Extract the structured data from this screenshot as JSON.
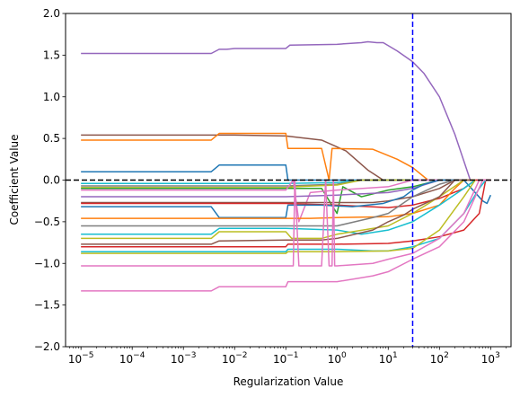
{
  "chart_data": {
    "type": "line",
    "xscale": "log",
    "xlabel": "Regularization Value",
    "ylabel": "Coefficient Value",
    "xlim": [
      5e-06,
      2500
    ],
    "ylim": [
      -2.0,
      2.0
    ],
    "grid": false,
    "yticks": [
      {
        "value": -2.0,
        "label": "−2.0"
      },
      {
        "value": -1.5,
        "label": "−1.5"
      },
      {
        "value": -1.0,
        "label": "−1.0"
      },
      {
        "value": -0.5,
        "label": "−0.5"
      },
      {
        "value": 0.0,
        "label": "0.0"
      },
      {
        "value": 0.5,
        "label": "0.5"
      },
      {
        "value": 1.0,
        "label": "1.0"
      },
      {
        "value": 1.5,
        "label": "1.5"
      },
      {
        "value": 2.0,
        "label": "2.0"
      }
    ],
    "xticks": [
      {
        "value": 1e-05,
        "base": "10",
        "exp": "−5"
      },
      {
        "value": 0.0001,
        "base": "10",
        "exp": "−4"
      },
      {
        "value": 0.001,
        "base": "10",
        "exp": "−3"
      },
      {
        "value": 0.01,
        "base": "10",
        "exp": "−2"
      },
      {
        "value": 0.1,
        "base": "10",
        "exp": "−1"
      },
      {
        "value": 1,
        "base": "10",
        "exp": "0"
      },
      {
        "value": 10,
        "base": "10",
        "exp": "1"
      },
      {
        "value": 100,
        "base": "10",
        "exp": "2"
      },
      {
        "value": 1000,
        "base": "10",
        "exp": "3"
      }
    ],
    "reference_lines": [
      {
        "orientation": "horizontal",
        "value": 0.0,
        "color": "#000000",
        "style": "dashed"
      },
      {
        "orientation": "vertical",
        "value": 30,
        "color": "#0000ff",
        "style": "dashed"
      }
    ],
    "series": [
      {
        "color": "#9467bd",
        "points": [
          [
            1e-05,
            1.52
          ],
          [
            0.0035,
            1.52
          ],
          [
            0.005,
            1.57
          ],
          [
            0.007,
            1.57
          ],
          [
            0.01,
            1.58
          ],
          [
            0.1,
            1.58
          ],
          [
            0.12,
            1.62
          ],
          [
            1,
            1.63
          ],
          [
            3,
            1.65
          ],
          [
            4,
            1.66
          ],
          [
            6,
            1.65
          ],
          [
            8,
            1.65
          ],
          [
            15,
            1.55
          ],
          [
            30,
            1.42
          ],
          [
            50,
            1.28
          ],
          [
            100,
            1.0
          ],
          [
            200,
            0.55
          ],
          [
            400,
            0.0
          ],
          [
            700,
            0.0
          ],
          [
            1000,
            0.0
          ]
        ]
      },
      {
        "color": "#8c564b",
        "points": [
          [
            1e-05,
            0.54
          ],
          [
            0.01,
            0.54
          ],
          [
            0.1,
            0.53
          ],
          [
            0.5,
            0.48
          ],
          [
            1.5,
            0.35
          ],
          [
            4,
            0.12
          ],
          [
            8,
            0.0
          ],
          [
            30,
            0.0
          ],
          [
            300,
            0.0
          ]
        ]
      },
      {
        "color": "#ff7f0e",
        "points": [
          [
            1e-05,
            0.48
          ],
          [
            0.0035,
            0.48
          ],
          [
            0.005,
            0.56
          ],
          [
            0.1,
            0.56
          ],
          [
            0.11,
            0.38
          ],
          [
            0.5,
            0.38
          ],
          [
            0.7,
            0.0
          ],
          [
            0.8,
            0.38
          ],
          [
            5,
            0.37
          ],
          [
            15,
            0.25
          ],
          [
            30,
            0.15
          ],
          [
            60,
            0.0
          ],
          [
            300,
            0.0
          ]
        ]
      },
      {
        "color": "#1f77b4",
        "points": [
          [
            1e-05,
            0.1
          ],
          [
            0.0035,
            0.1
          ],
          [
            0.005,
            0.18
          ],
          [
            0.1,
            0.18
          ],
          [
            0.11,
            0.0
          ],
          [
            0.3,
            0.0
          ],
          [
            1,
            0.0
          ],
          [
            10,
            0.0
          ],
          [
            30,
            0.0
          ],
          [
            100,
            0.0
          ]
        ]
      },
      {
        "color": "#17becf",
        "points": [
          [
            1e-05,
            -0.04
          ],
          [
            0.1,
            -0.04
          ],
          [
            1,
            -0.03
          ],
          [
            3,
            0.0
          ],
          [
            30,
            0.0
          ]
        ]
      },
      {
        "color": "#7f7f7f",
        "points": [
          [
            1e-05,
            -0.07
          ],
          [
            0.1,
            -0.07
          ],
          [
            1,
            -0.05
          ],
          [
            3,
            0.0
          ],
          [
            30,
            0.0
          ]
        ]
      },
      {
        "color": "#bcbd22",
        "points": [
          [
            1e-05,
            -0.09
          ],
          [
            0.1,
            -0.09
          ],
          [
            0.15,
            -0.08
          ],
          [
            1,
            -0.06
          ],
          [
            3,
            0.0
          ],
          [
            30,
            0.0
          ]
        ]
      },
      {
        "color": "#2ca02c",
        "points": [
          [
            1e-05,
            -0.1
          ],
          [
            0.1,
            -0.1
          ],
          [
            0.5,
            -0.1
          ],
          [
            1,
            -0.4
          ],
          [
            1.3,
            -0.08
          ],
          [
            3,
            -0.2
          ],
          [
            10,
            -0.12
          ],
          [
            30,
            -0.08
          ],
          [
            100,
            0.0
          ],
          [
            300,
            0.0
          ]
        ]
      },
      {
        "color": "#e377c2",
        "points": [
          [
            1e-05,
            -0.12
          ],
          [
            0.1,
            -0.12
          ],
          [
            0.14,
            0.0
          ],
          [
            0.18,
            -0.5
          ],
          [
            0.3,
            -0.15
          ],
          [
            1,
            -0.12
          ],
          [
            10,
            -0.08
          ],
          [
            30,
            0.0
          ],
          [
            100,
            0.0
          ]
        ]
      },
      {
        "color": "#9467bd",
        "points": [
          [
            1e-05,
            -0.2
          ],
          [
            0.1,
            -0.2
          ],
          [
            1,
            -0.18
          ],
          [
            10,
            -0.15
          ],
          [
            30,
            -0.1
          ],
          [
            100,
            0.0
          ],
          [
            300,
            0.0
          ]
        ]
      },
      {
        "color": "#8c564b",
        "points": [
          [
            1e-05,
            -0.27
          ],
          [
            0.1,
            -0.27
          ],
          [
            1,
            -0.27
          ],
          [
            5,
            -0.27
          ],
          [
            10,
            -0.25
          ],
          [
            30,
            -0.2
          ],
          [
            100,
            -0.1
          ],
          [
            200,
            0.0
          ],
          [
            400,
            0.0
          ]
        ]
      },
      {
        "color": "#d62728",
        "points": [
          [
            1e-05,
            -0.28
          ],
          [
            0.1,
            -0.28
          ],
          [
            1,
            -0.3
          ],
          [
            10,
            -0.33
          ],
          [
            30,
            -0.3
          ],
          [
            100,
            -0.22
          ],
          [
            300,
            -0.1
          ],
          [
            500,
            0.0
          ],
          [
            1000,
            0.0
          ]
        ]
      },
      {
        "color": "#1f77b4",
        "points": [
          [
            1e-05,
            -0.32
          ],
          [
            0.0035,
            -0.32
          ],
          [
            0.005,
            -0.45
          ],
          [
            0.1,
            -0.45
          ],
          [
            0.11,
            -0.3
          ],
          [
            0.5,
            -0.3
          ],
          [
            2,
            -0.32
          ],
          [
            8,
            -0.28
          ],
          [
            20,
            -0.2
          ],
          [
            30,
            -0.12
          ],
          [
            50,
            -0.05
          ],
          [
            100,
            0.0
          ],
          [
            300,
            0.0
          ],
          [
            700,
            -0.25
          ],
          [
            850,
            -0.28
          ],
          [
            1000,
            -0.18
          ]
        ]
      },
      {
        "color": "#ff7f0e",
        "points": [
          [
            1e-05,
            -0.46
          ],
          [
            0.1,
            -0.46
          ],
          [
            0.3,
            -0.46
          ],
          [
            1,
            -0.45
          ],
          [
            10,
            -0.44
          ],
          [
            30,
            -0.4
          ],
          [
            100,
            -0.3
          ],
          [
            200,
            -0.1
          ],
          [
            300,
            0.0
          ],
          [
            500,
            0.0
          ]
        ]
      },
      {
        "color": "#7f7f7f",
        "points": [
          [
            1e-05,
            -0.55
          ],
          [
            0.1,
            -0.55
          ],
          [
            0.5,
            -0.55
          ],
          [
            1,
            -0.55
          ],
          [
            5,
            -0.45
          ],
          [
            10,
            -0.4
          ],
          [
            30,
            -0.2
          ],
          [
            100,
            -0.05
          ],
          [
            200,
            0.0
          ],
          [
            400,
            0.0
          ]
        ]
      },
      {
        "color": "#17becf",
        "points": [
          [
            1e-05,
            -0.65
          ],
          [
            0.0035,
            -0.65
          ],
          [
            0.005,
            -0.58
          ],
          [
            0.1,
            -0.58
          ],
          [
            1,
            -0.6
          ],
          [
            3,
            -0.65
          ],
          [
            10,
            -0.6
          ],
          [
            30,
            -0.5
          ],
          [
            100,
            -0.3
          ],
          [
            300,
            -0.1
          ],
          [
            500,
            0.0
          ]
        ]
      },
      {
        "color": "#bcbd22",
        "points": [
          [
            1e-05,
            -0.7
          ],
          [
            0.0035,
            -0.7
          ],
          [
            0.005,
            -0.62
          ],
          [
            0.1,
            -0.62
          ],
          [
            0.13,
            -0.7
          ],
          [
            0.5,
            -0.7
          ],
          [
            1,
            -0.65
          ],
          [
            10,
            -0.55
          ],
          [
            30,
            -0.4
          ],
          [
            100,
            -0.2
          ],
          [
            300,
            0.0
          ],
          [
            500,
            0.0
          ]
        ]
      },
      {
        "color": "#8c564b",
        "points": [
          [
            1e-05,
            -0.77
          ],
          [
            0.0035,
            -0.77
          ],
          [
            0.005,
            -0.73
          ],
          [
            0.1,
            -0.72
          ],
          [
            0.5,
            -0.72
          ],
          [
            1,
            -0.7
          ],
          [
            5,
            -0.6
          ],
          [
            10,
            -0.5
          ],
          [
            20,
            -0.42
          ],
          [
            30,
            -0.35
          ],
          [
            100,
            -0.2
          ],
          [
            200,
            0.0
          ],
          [
            400,
            0.0
          ]
        ]
      },
      {
        "color": "#d62728",
        "points": [
          [
            1e-05,
            -0.8
          ],
          [
            0.1,
            -0.8
          ],
          [
            0.11,
            -0.77
          ],
          [
            1,
            -0.77
          ],
          [
            10,
            -0.76
          ],
          [
            30,
            -0.73
          ],
          [
            100,
            -0.68
          ],
          [
            300,
            -0.6
          ],
          [
            600,
            -0.4
          ],
          [
            800,
            0.0
          ],
          [
            1000,
            0.0
          ]
        ]
      },
      {
        "color": "#17becf",
        "points": [
          [
            1e-05,
            -0.86
          ],
          [
            0.1,
            -0.86
          ],
          [
            0.11,
            -0.83
          ],
          [
            1,
            -0.83
          ],
          [
            5,
            -0.85
          ],
          [
            10,
            -0.85
          ],
          [
            30,
            -0.8
          ],
          [
            100,
            -0.7
          ],
          [
            300,
            -0.4
          ],
          [
            600,
            -0.1
          ],
          [
            800,
            0.0
          ]
        ]
      },
      {
        "color": "#bcbd22",
        "points": [
          [
            1e-05,
            -0.88
          ],
          [
            0.1,
            -0.88
          ],
          [
            0.11,
            -0.86
          ],
          [
            1,
            -0.86
          ],
          [
            10,
            -0.85
          ],
          [
            30,
            -0.82
          ],
          [
            100,
            -0.6
          ],
          [
            300,
            -0.2
          ],
          [
            500,
            0.0
          ]
        ]
      },
      {
        "color": "#e377c2",
        "points": [
          [
            1e-05,
            -1.03
          ],
          [
            0.1,
            -1.03
          ],
          [
            0.14,
            -1.03
          ],
          [
            0.15,
            0.0
          ],
          [
            0.18,
            -1.03
          ],
          [
            0.5,
            -1.03
          ],
          [
            0.6,
            0.0
          ],
          [
            0.7,
            -1.03
          ],
          [
            0.8,
            -1.03
          ],
          [
            0.85,
            0.0
          ],
          [
            0.9,
            -1.03
          ],
          [
            1,
            -1.03
          ],
          [
            5,
            -1.0
          ],
          [
            10,
            -0.95
          ],
          [
            30,
            -0.88
          ],
          [
            100,
            -0.7
          ],
          [
            300,
            -0.4
          ],
          [
            600,
            0.0
          ],
          [
            800,
            0.0
          ]
        ]
      },
      {
        "color": "#e377c2",
        "points": [
          [
            1e-05,
            -1.33
          ],
          [
            0.0035,
            -1.33
          ],
          [
            0.005,
            -1.28
          ],
          [
            0.1,
            -1.28
          ],
          [
            0.11,
            -1.22
          ],
          [
            1,
            -1.22
          ],
          [
            5,
            -1.15
          ],
          [
            10,
            -1.1
          ],
          [
            30,
            -0.95
          ],
          [
            100,
            -0.8
          ],
          [
            300,
            -0.5
          ],
          [
            500,
            -0.2
          ],
          [
            700,
            0.0
          ],
          [
            1000,
            0.0
          ]
        ]
      }
    ]
  }
}
